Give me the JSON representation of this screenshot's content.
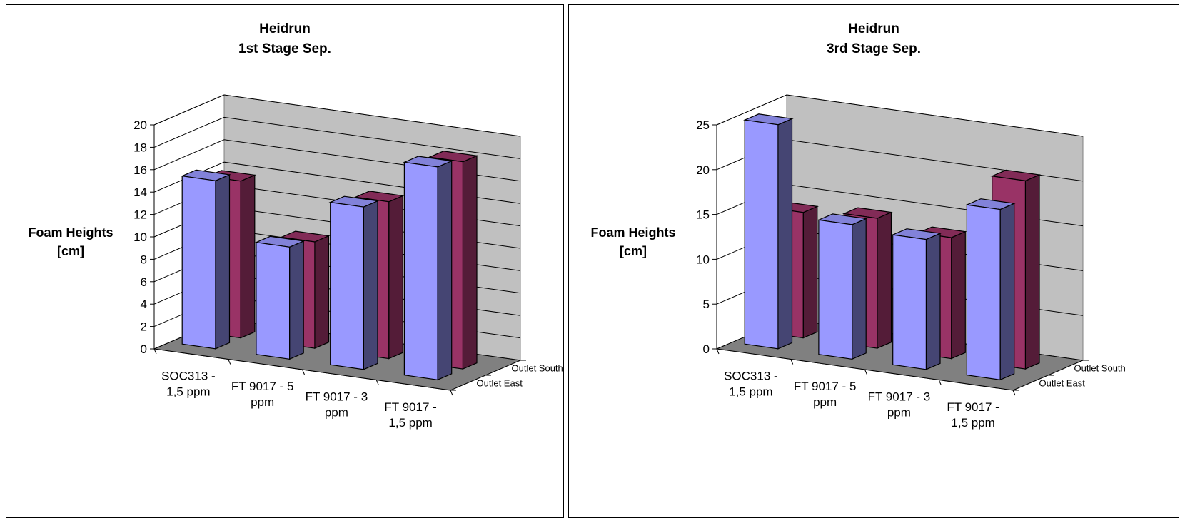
{
  "chart_data": [
    {
      "type": "bar",
      "title_line1": "Heidrun",
      "title_line2": "1st Stage Sep.",
      "ylabel_line1": "Foam Heights",
      "ylabel_line2": "[cm]",
      "categories": [
        [
          "SOC313 -",
          "1,5 ppm"
        ],
        [
          "FT 9017 - 5",
          "ppm"
        ],
        [
          "FT 9017 - 3",
          "ppm"
        ],
        [
          "FT 9017 -",
          "1,5 ppm"
        ]
      ],
      "depth_labels": [
        "Outlet South",
        "Outlet East"
      ],
      "yticks": [
        "0",
        "2",
        "4",
        "6",
        "8",
        "10",
        "12",
        "14",
        "16",
        "18",
        "20"
      ],
      "ylim": [
        0,
        20
      ],
      "grid": true,
      "series": [
        {
          "values": [
            15,
            10,
            14.5,
            19
          ]
        },
        {
          "values": [
            14,
            9.5,
            14,
            18.5
          ]
        }
      ],
      "colors": {
        "front": "#9999ff",
        "back": "#993366"
      }
    },
    {
      "type": "bar",
      "title_line1": "Heidrun",
      "title_line2": "3rd Stage Sep.",
      "ylabel_line1": "Foam Heights",
      "ylabel_line2": "[cm]",
      "categories": [
        [
          "SOC313 -",
          "1,5 ppm"
        ],
        [
          "FT 9017 - 5",
          "ppm"
        ],
        [
          "FT 9017 - 3",
          "ppm"
        ],
        [
          "FT 9017 -",
          "1,5 ppm"
        ]
      ],
      "depth_labels": [
        "Outlet South",
        "Outlet East"
      ],
      "yticks": [
        "0",
        "5",
        "10",
        "15",
        "20",
        "25"
      ],
      "ylim": [
        0,
        25
      ],
      "grid": true,
      "series": [
        {
          "values": [
            25,
            15,
            14.5,
            19
          ]
        },
        {
          "values": [
            14,
            14.5,
            13.5,
            21
          ]
        }
      ],
      "colors": {
        "front": "#9999ff",
        "back": "#993366"
      }
    }
  ]
}
